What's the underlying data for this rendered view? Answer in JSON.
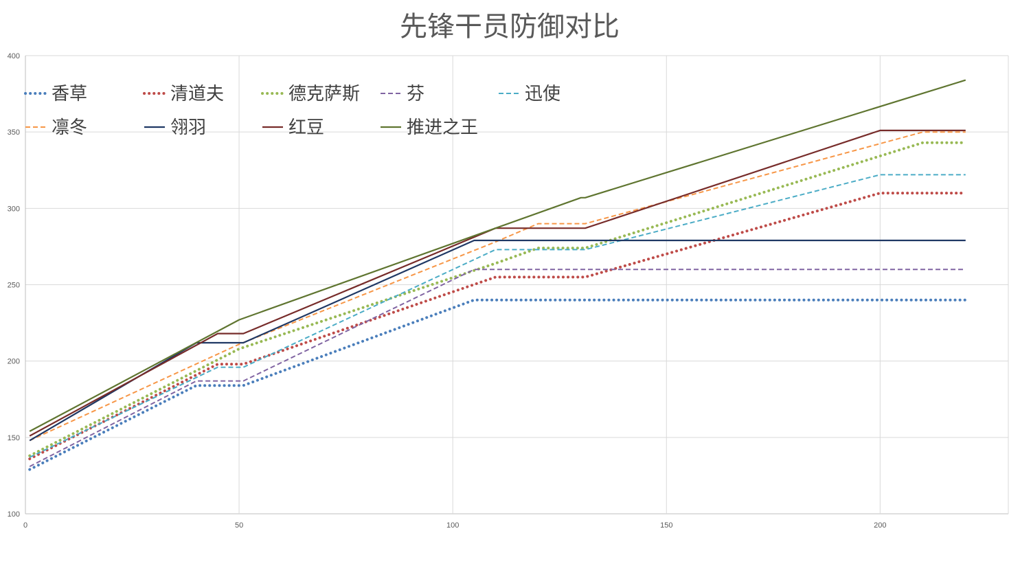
{
  "chart_data": {
    "type": "line",
    "title": "先锋干员防御对比",
    "xlabel": "",
    "ylabel": "",
    "xlim": [
      0,
      230
    ],
    "ylim": [
      100,
      400
    ],
    "xticks": [
      0,
      50,
      100,
      150,
      200
    ],
    "yticks": [
      100,
      150,
      200,
      250,
      300,
      350,
      400
    ],
    "grid": true,
    "legend_position": "top-left",
    "series": [
      {
        "name": "香草",
        "color": "#4a7ebb",
        "dash": "dot",
        "points": [
          [
            1,
            129
          ],
          [
            40,
            184
          ],
          [
            51,
            184
          ],
          [
            105,
            240
          ],
          [
            220,
            240
          ]
        ]
      },
      {
        "name": "清道夫",
        "color": "#be4b48",
        "dash": "dot",
        "points": [
          [
            1,
            136
          ],
          [
            45,
            198
          ],
          [
            51,
            198
          ],
          [
            110,
            255
          ],
          [
            131,
            255
          ],
          [
            200,
            310
          ],
          [
            220,
            310
          ]
        ]
      },
      {
        "name": "德克萨斯",
        "color": "#98b954",
        "dash": "dot",
        "points": [
          [
            1,
            138
          ],
          [
            50,
            208
          ],
          [
            110,
            264
          ],
          [
            120,
            274
          ],
          [
            131,
            274
          ],
          [
            210,
            343
          ],
          [
            220,
            343
          ]
        ]
      },
      {
        "name": "芬",
        "color": "#8064a2",
        "dash": "dash",
        "points": [
          [
            1,
            131
          ],
          [
            40,
            187
          ],
          [
            51,
            187
          ],
          [
            105,
            260
          ],
          [
            220,
            260
          ]
        ]
      },
      {
        "name": "迅使",
        "color": "#4bacc6",
        "dash": "dash",
        "points": [
          [
            1,
            137
          ],
          [
            45,
            196
          ],
          [
            51,
            196
          ],
          [
            110,
            273
          ],
          [
            131,
            273
          ],
          [
            200,
            322
          ],
          [
            220,
            322
          ]
        ]
      },
      {
        "name": "凛冬",
        "color": "#f79646",
        "dash": "dash",
        "points": [
          [
            1,
            148
          ],
          [
            50,
            211
          ],
          [
            110,
            278
          ],
          [
            120,
            290
          ],
          [
            131,
            290
          ],
          [
            210,
            350
          ],
          [
            220,
            350
          ]
        ]
      },
      {
        "name": "翎羽",
        "color": "#1f3864",
        "dash": "solid",
        "points": [
          [
            1,
            148
          ],
          [
            40,
            212
          ],
          [
            51,
            212
          ],
          [
            105,
            279
          ],
          [
            220,
            279
          ]
        ]
      },
      {
        "name": "红豆",
        "color": "#772c2a",
        "dash": "solid",
        "points": [
          [
            1,
            151
          ],
          [
            45,
            218
          ],
          [
            51,
            218
          ],
          [
            110,
            287
          ],
          [
            131,
            287
          ],
          [
            200,
            351
          ],
          [
            220,
            351
          ]
        ]
      },
      {
        "name": "推进之王",
        "color": "#5f7530",
        "dash": "solid",
        "points": [
          [
            1,
            154
          ],
          [
            50,
            227
          ],
          [
            110,
            287
          ],
          [
            130,
            307
          ],
          [
            131,
            307
          ],
          [
            220,
            384
          ]
        ]
      }
    ]
  }
}
